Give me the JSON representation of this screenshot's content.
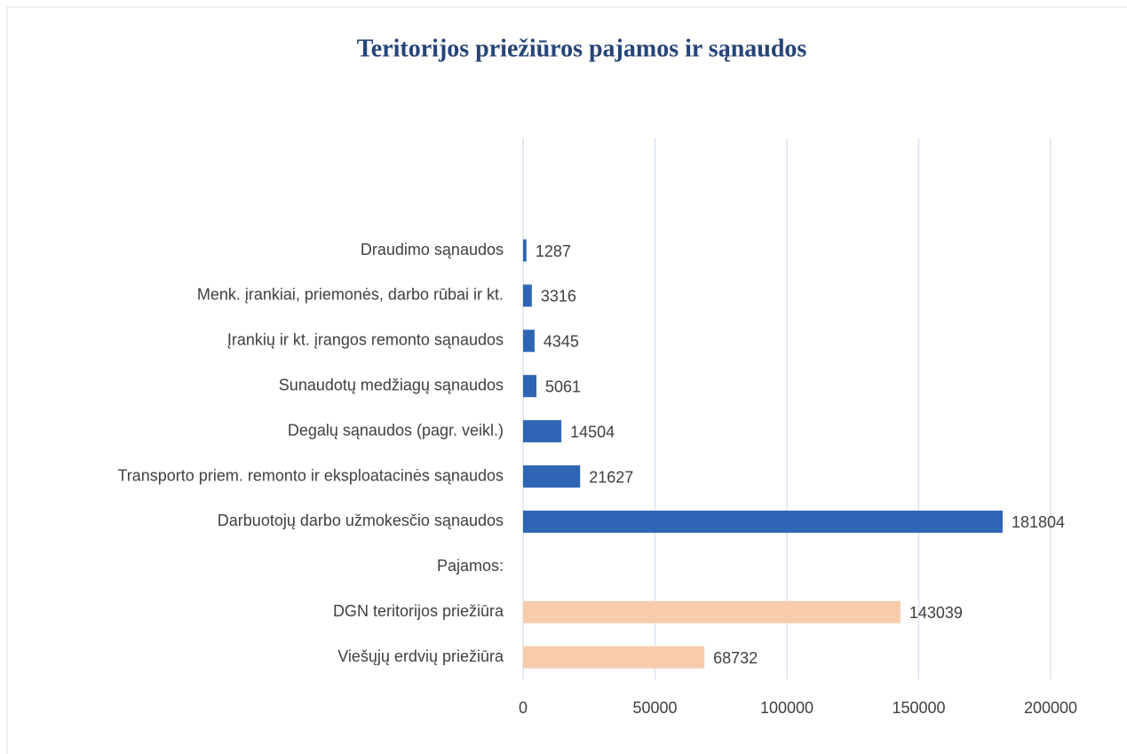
{
  "chart_data": {
    "type": "bar",
    "orientation": "horizontal",
    "title": "Teritorijos priežiūros pajamos ir sąnaudos",
    "categories": [
      "Draudimo sąnaudos",
      "Menk. įrankiai, priemonės, darbo rūbai ir kt.",
      "Įrankių ir kt. įrangos remonto sąnaudos",
      "Sunaudotų medžiagų sąnaudos",
      "Degalų sąnaudos (pagr. veikl.)",
      "Transporto priem. remonto ir eksploatacinės sąnaudos",
      "Darbuotojų darbo užmokesčio sąnaudos",
      "Pajamos:",
      "DGN teritorijos priežiūra",
      "Viešųjų erdvių priežiūra"
    ],
    "values": [
      1287,
      3316,
      4345,
      5061,
      14504,
      21627,
      181804,
      null,
      143039,
      68732
    ],
    "colors": [
      "#2e66b5",
      "#2e66b5",
      "#2e66b5",
      "#2e66b5",
      "#2e66b5",
      "#2e66b5",
      "#2e66b5",
      null,
      "#f8cbad",
      "#f8cbad"
    ],
    "xlim": [
      0,
      200000
    ],
    "xticks": [
      0,
      50000,
      100000,
      150000,
      200000
    ],
    "grid": true
  }
}
